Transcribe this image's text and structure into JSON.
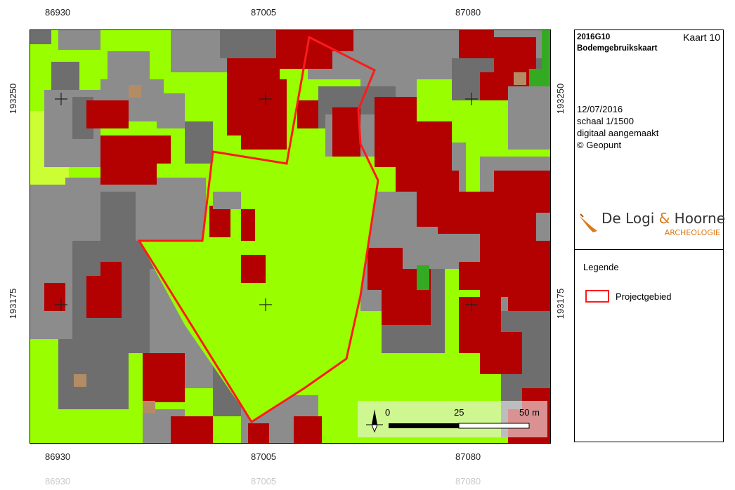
{
  "map": {
    "x_ticks_top": [
      "86930",
      "87005",
      "87080"
    ],
    "x_ticks_bottom": [
      "86930",
      "87005",
      "87080"
    ],
    "x_ticks_ghost": [
      "86930",
      "87005",
      "87080"
    ],
    "y_ticks_left": [
      "193250",
      "193175"
    ],
    "y_ticks_right": [
      "193250",
      "193175"
    ],
    "scale_bar": {
      "label_0": "0",
      "label_25": "25",
      "label_50": "50 m"
    },
    "colors": {
      "grass": "#99ff00",
      "grass_light": "#ccff33",
      "gray": "#8c8c8c",
      "dark_gray": "#6e6e6e",
      "red": "#b30000",
      "green": "#33aa22",
      "tan": "#b38c66",
      "outline": "#ff1a1a"
    }
  },
  "info": {
    "code": "2016G10",
    "map_number": "Kaart 10",
    "subtitle": "Bodemgebruikskaart",
    "date": "12/07/2016",
    "scale": "schaal 1/1500",
    "digital": "digitaal aangemaakt",
    "source": "© Geopunt",
    "logo_main": "De Logi",
    "logo_amp": "&",
    "logo_name": "Hoorne",
    "logo_sub": "ARCHEOLOGIE",
    "legend_title": "Legende",
    "legend_item": "Projectgebied"
  }
}
